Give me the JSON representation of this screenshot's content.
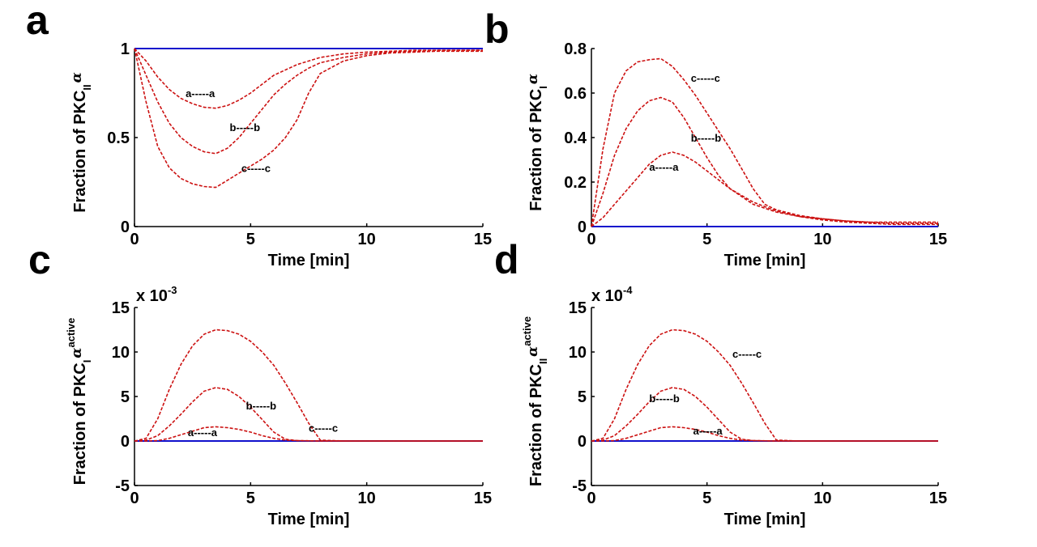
{
  "colors": {
    "dashed_series": "#cc1111",
    "baseline_series": "#1111cc"
  },
  "chart_data": [
    {
      "panel": "a",
      "type": "line",
      "xlabel": "Time [min]",
      "ylabel": {
        "base": "Fraction of PKC",
        "sub": "II",
        "greek": "α",
        "sup": ""
      },
      "multiplier": null,
      "xlim": [
        0,
        15
      ],
      "ylim": [
        0,
        1
      ],
      "xticks": [
        0,
        5,
        10,
        15
      ],
      "yticks": [
        0,
        0.5,
        1
      ],
      "grid": false,
      "legend": "none",
      "series": [
        {
          "x": [
            0,
            15
          ],
          "y": [
            1,
            1
          ]
        },
        {
          "x": [
            0,
            0.5,
            1,
            1.5,
            2,
            2.5,
            3,
            3.5,
            4,
            4.5,
            5,
            5.5,
            6,
            7,
            8,
            9,
            10,
            11,
            12,
            13,
            14,
            15
          ],
          "y": [
            1,
            0.93,
            0.84,
            0.77,
            0.72,
            0.69,
            0.67,
            0.665,
            0.68,
            0.71,
            0.75,
            0.8,
            0.85,
            0.91,
            0.95,
            0.97,
            0.98,
            0.985,
            0.99,
            0.99,
            0.99,
            0.99
          ]
        },
        {
          "x": [
            0,
            0.5,
            1,
            1.5,
            2,
            2.5,
            3,
            3.5,
            4,
            4.5,
            5,
            5.5,
            6,
            6.5,
            7,
            7.5,
            8,
            9,
            10,
            11,
            12,
            13,
            14,
            15
          ],
          "y": [
            1,
            0.85,
            0.7,
            0.58,
            0.5,
            0.45,
            0.42,
            0.41,
            0.44,
            0.5,
            0.58,
            0.66,
            0.74,
            0.8,
            0.85,
            0.89,
            0.92,
            0.95,
            0.97,
            0.98,
            0.985,
            0.99,
            0.99,
            0.99
          ]
        },
        {
          "x": [
            0,
            0.5,
            1,
            1.5,
            2,
            2.5,
            3,
            3.5,
            4,
            4.5,
            5,
            5.5,
            6,
            6.5,
            7,
            7.5,
            8,
            9,
            10,
            11,
            12,
            13,
            14,
            15
          ],
          "y": [
            1,
            0.7,
            0.45,
            0.33,
            0.27,
            0.24,
            0.225,
            0.22,
            0.26,
            0.3,
            0.34,
            0.38,
            0.43,
            0.5,
            0.6,
            0.75,
            0.86,
            0.93,
            0.96,
            0.975,
            0.98,
            0.985,
            0.985,
            0.985
          ]
        }
      ],
      "annotations": [
        {
          "text": "a-----a",
          "x": 2.2,
          "y": 0.75
        },
        {
          "text": "b-----b",
          "x": 4.1,
          "y": 0.56
        },
        {
          "text": "c-----c",
          "x": 4.6,
          "y": 0.33
        }
      ]
    },
    {
      "panel": "b",
      "type": "line",
      "xlabel": "Time [min]",
      "ylabel": {
        "base": "Fraction of PKC",
        "sub": "I",
        "greek": "α",
        "sup": ""
      },
      "multiplier": null,
      "xlim": [
        0,
        15
      ],
      "ylim": [
        0,
        0.8
      ],
      "xticks": [
        0,
        5,
        10,
        15
      ],
      "yticks": [
        0,
        0.2,
        0.4,
        0.6,
        0.8
      ],
      "grid": false,
      "legend": "none",
      "series": [
        {
          "x": [
            0,
            15
          ],
          "y": [
            0,
            0
          ]
        },
        {
          "x": [
            0,
            0.5,
            1,
            1.5,
            2,
            2.5,
            3,
            3.5,
            4,
            4.5,
            5,
            5.5,
            6,
            7,
            8,
            9,
            10,
            11,
            12,
            13,
            14,
            15
          ],
          "y": [
            0,
            0.04,
            0.1,
            0.16,
            0.22,
            0.28,
            0.32,
            0.335,
            0.32,
            0.29,
            0.25,
            0.21,
            0.17,
            0.11,
            0.07,
            0.045,
            0.03,
            0.02,
            0.015,
            0.01,
            0.01,
            0.01
          ]
        },
        {
          "x": [
            0,
            0.5,
            1,
            1.5,
            2,
            2.5,
            3,
            3.5,
            4,
            4.5,
            5,
            5.5,
            6,
            7,
            8,
            9,
            10,
            11,
            12,
            13,
            14,
            15
          ],
          "y": [
            0,
            0.15,
            0.32,
            0.44,
            0.52,
            0.565,
            0.58,
            0.56,
            0.49,
            0.4,
            0.31,
            0.23,
            0.17,
            0.1,
            0.065,
            0.045,
            0.035,
            0.025,
            0.02,
            0.015,
            0.015,
            0.015
          ]
        },
        {
          "x": [
            0,
            0.5,
            1,
            1.5,
            2,
            2.5,
            3,
            3.5,
            4,
            4.5,
            5,
            5.5,
            6,
            6.5,
            7,
            7.5,
            8,
            9,
            10,
            11,
            12,
            13,
            14,
            15
          ],
          "y": [
            0,
            0.35,
            0.6,
            0.7,
            0.74,
            0.75,
            0.755,
            0.72,
            0.66,
            0.59,
            0.51,
            0.43,
            0.35,
            0.26,
            0.17,
            0.1,
            0.075,
            0.05,
            0.035,
            0.025,
            0.02,
            0.02,
            0.02,
            0.02
          ]
        }
      ],
      "annotations": [
        {
          "text": "a-----a",
          "x": 2.5,
          "y": 0.27
        },
        {
          "text": "b-----b",
          "x": 4.3,
          "y": 0.4
        },
        {
          "text": "c-----c",
          "x": 4.3,
          "y": 0.67
        }
      ]
    },
    {
      "panel": "c",
      "type": "line",
      "xlabel": "Time [min]",
      "ylabel": {
        "base": "Fraction of PKC",
        "sub": "I",
        "greek": "α",
        "sup": "active"
      },
      "multiplier": {
        "base": "x 10",
        "exp": "-3"
      },
      "xlim": [
        0,
        15
      ],
      "ylim": [
        -5,
        15
      ],
      "xticks": [
        0,
        5,
        10,
        15
      ],
      "yticks": [
        -5,
        0,
        5,
        10,
        15
      ],
      "grid": false,
      "legend": "none",
      "series": [
        {
          "x": [
            0,
            15
          ],
          "y": [
            0,
            0
          ]
        },
        {
          "x": [
            0,
            0.5,
            1,
            1.5,
            2,
            2.5,
            3,
            3.5,
            4,
            4.5,
            5,
            5.5,
            6,
            6.5,
            7,
            8,
            9,
            10,
            11,
            12,
            13,
            14,
            15
          ],
          "y": [
            0,
            0,
            0.05,
            0.3,
            0.7,
            1.1,
            1.5,
            1.6,
            1.5,
            1.3,
            1.0,
            0.6,
            0.3,
            0.1,
            0.05,
            0,
            0,
            0,
            0,
            0,
            0,
            0,
            0
          ]
        },
        {
          "x": [
            0,
            0.5,
            1,
            1.5,
            2,
            2.5,
            3,
            3.5,
            4,
            4.5,
            5,
            5.5,
            6,
            6.5,
            7,
            8,
            9,
            10,
            11,
            12,
            13,
            14,
            15
          ],
          "y": [
            0,
            0.1,
            0.6,
            1.7,
            3.0,
            4.4,
            5.6,
            6.0,
            5.8,
            5.0,
            3.8,
            2.4,
            1.0,
            0.2,
            0.05,
            0,
            0,
            0,
            0,
            0,
            0,
            0,
            0
          ]
        },
        {
          "x": [
            0,
            0.5,
            1,
            1.5,
            2,
            2.5,
            3,
            3.5,
            4,
            4.5,
            5,
            5.5,
            6,
            6.5,
            7,
            7.5,
            8,
            9,
            10,
            11,
            12,
            13,
            14,
            15
          ],
          "y": [
            0,
            0.3,
            2.5,
            5.8,
            8.6,
            10.7,
            12.0,
            12.5,
            12.4,
            12.0,
            11.2,
            10.0,
            8.5,
            6.5,
            4.3,
            2.0,
            0.1,
            0,
            0,
            0,
            0,
            0,
            0,
            0
          ]
        }
      ],
      "annotations": [
        {
          "text": "a-----a",
          "x": 2.3,
          "y": 1.0
        },
        {
          "text": "b-----b",
          "x": 4.8,
          "y": 4.0
        },
        {
          "text": "c-----c",
          "x": 7.5,
          "y": 1.5
        }
      ]
    },
    {
      "panel": "d",
      "type": "line",
      "xlabel": "Time [min]",
      "ylabel": {
        "base": "Fraction of PKC",
        "sub": "II",
        "greek": "α",
        "sup": "active"
      },
      "multiplier": {
        "base": "x 10",
        "exp": "-4"
      },
      "xlim": [
        0,
        15
      ],
      "ylim": [
        -5,
        15
      ],
      "xticks": [
        0,
        5,
        10,
        15
      ],
      "yticks": [
        -5,
        0,
        5,
        10,
        15
      ],
      "grid": false,
      "legend": "none",
      "series": [
        {
          "x": [
            0,
            15
          ],
          "y": [
            0,
            0
          ]
        },
        {
          "x": [
            0,
            0.5,
            1,
            1.5,
            2,
            2.5,
            3,
            3.5,
            4,
            4.5,
            5,
            5.5,
            6,
            6.5,
            7,
            8,
            9,
            10,
            11,
            12,
            13,
            14,
            15
          ],
          "y": [
            0,
            0,
            0.05,
            0.3,
            0.7,
            1.1,
            1.5,
            1.6,
            1.5,
            1.3,
            1.0,
            0.6,
            0.3,
            0.1,
            0.05,
            0,
            0,
            0,
            0,
            0,
            0,
            0,
            0
          ]
        },
        {
          "x": [
            0,
            0.5,
            1,
            1.5,
            2,
            2.5,
            3,
            3.5,
            4,
            4.5,
            5,
            5.5,
            6,
            6.5,
            7,
            8,
            9,
            10,
            11,
            12,
            13,
            14,
            15
          ],
          "y": [
            0,
            0.1,
            0.6,
            1.7,
            3.0,
            4.4,
            5.6,
            6.0,
            5.8,
            5.0,
            3.8,
            2.4,
            1.0,
            0.2,
            0.05,
            0,
            0,
            0,
            0,
            0,
            0,
            0,
            0
          ]
        },
        {
          "x": [
            0,
            0.5,
            1,
            1.5,
            2,
            2.5,
            3,
            3.5,
            4,
            4.5,
            5,
            5.5,
            6,
            6.5,
            7,
            7.5,
            8,
            9,
            10,
            11,
            12,
            13,
            14,
            15
          ],
          "y": [
            0,
            0.3,
            2.5,
            5.8,
            8.6,
            10.7,
            12.0,
            12.5,
            12.4,
            12.0,
            11.2,
            10.0,
            8.5,
            6.5,
            4.3,
            2.0,
            0.1,
            0,
            0,
            0,
            0,
            0,
            0,
            0
          ]
        }
      ],
      "annotations": [
        {
          "text": "a-----a",
          "x": 4.4,
          "y": 1.2
        },
        {
          "text": "b-----b",
          "x": 2.5,
          "y": 4.8
        },
        {
          "text": "c-----c",
          "x": 6.1,
          "y": 9.8
        }
      ]
    }
  ]
}
